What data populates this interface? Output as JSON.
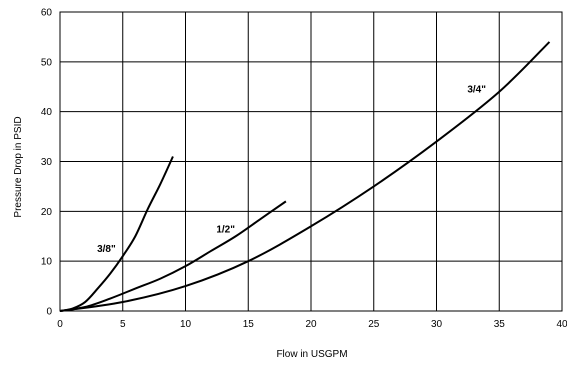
{
  "chart_data": {
    "type": "line",
    "title": "",
    "xlabel": "Flow in USGPM",
    "ylabel": "Pressure Drop in PSID",
    "xlim": [
      0,
      40
    ],
    "ylim": [
      0,
      60
    ],
    "xticks": [
      0,
      5,
      10,
      15,
      20,
      25,
      30,
      35,
      40
    ],
    "yticks": [
      0,
      10,
      20,
      30,
      40,
      50,
      60
    ],
    "xtick_labels": [
      "0",
      "5",
      "10",
      "15",
      "20",
      "25",
      "30",
      "35",
      "40"
    ],
    "ytick_labels": [
      "0",
      "10",
      "20",
      "30",
      "40",
      "50",
      "60"
    ],
    "grid": true,
    "legend": "none",
    "series": [
      {
        "name": "3/8\"",
        "x": [
          0,
          1,
          2,
          3,
          4,
          5,
          6,
          7,
          8,
          9
        ],
        "y": [
          0,
          0.5,
          1.8,
          4.5,
          7.5,
          11,
          15,
          20.5,
          25.5,
          31
        ]
      },
      {
        "name": "1/2\"",
        "x": [
          0,
          2,
          4,
          6,
          8,
          10,
          12,
          14,
          16,
          18
        ],
        "y": [
          0,
          0.8,
          2.5,
          4.5,
          6.5,
          9,
          12,
          15,
          18.5,
          22
        ]
      },
      {
        "name": "3/4\"",
        "x": [
          0,
          5,
          10,
          15,
          20,
          25,
          30,
          35,
          39
        ],
        "y": [
          0,
          1.8,
          5,
          10,
          17,
          25,
          34,
          44,
          54
        ]
      }
    ],
    "annotations": [
      {
        "text": "3/8\"",
        "series": 0,
        "x": 3.7,
        "y": 12.5
      },
      {
        "text": "1/2\"",
        "series": 1,
        "x": 13.2,
        "y": 16.5
      },
      {
        "text": "3/4\"",
        "series": 2,
        "x": 33.2,
        "y": 44.5
      }
    ]
  }
}
